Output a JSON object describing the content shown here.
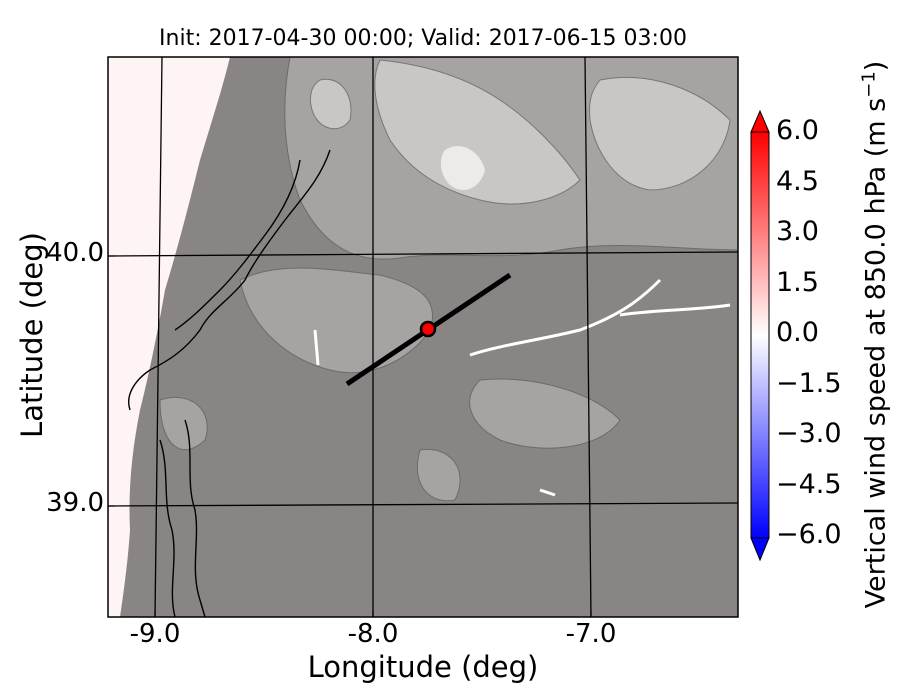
{
  "title": "Init: 2017-04-30 00:00; Valid: 2017-06-15 03:00",
  "axes": {
    "xlabel": "Longitude (deg)",
    "ylabel": "Latitude (deg)",
    "xticks": [
      "-9.0",
      "-8.0",
      "-7.0"
    ],
    "yticks": [
      "40.0",
      "39.0"
    ]
  },
  "colorbar": {
    "label": "Vertical wind speed at 850.0 hPa (m s",
    "label_exponent": "−1",
    "label_suffix": ")",
    "ticks": [
      "6.0",
      "4.5",
      "3.0",
      "1.5",
      "0.0",
      "−1.5",
      "−3.0",
      "−4.5",
      "−6.0"
    ],
    "range": [
      -6.0,
      6.0
    ],
    "colormap": "bwr"
  },
  "map": {
    "lon_range": [
      -9.25,
      -6.35
    ],
    "lat_range": [
      38.55,
      40.8
    ],
    "cross_section": {
      "lon": [
        -8.12,
        -7.37
      ],
      "lat": [
        39.48,
        39.92
      ]
    },
    "marker": {
      "lon": -7.74,
      "lat": 39.7,
      "color": "#ff0000"
    },
    "colors": {
      "terrain_dark": "#8a8585",
      "terrain_mid": "#a7a3a3",
      "terrain_light": "#c9c6c6",
      "peak": "#eeeaea",
      "ocean": "#fff4f4",
      "grid": "#000000"
    }
  }
}
